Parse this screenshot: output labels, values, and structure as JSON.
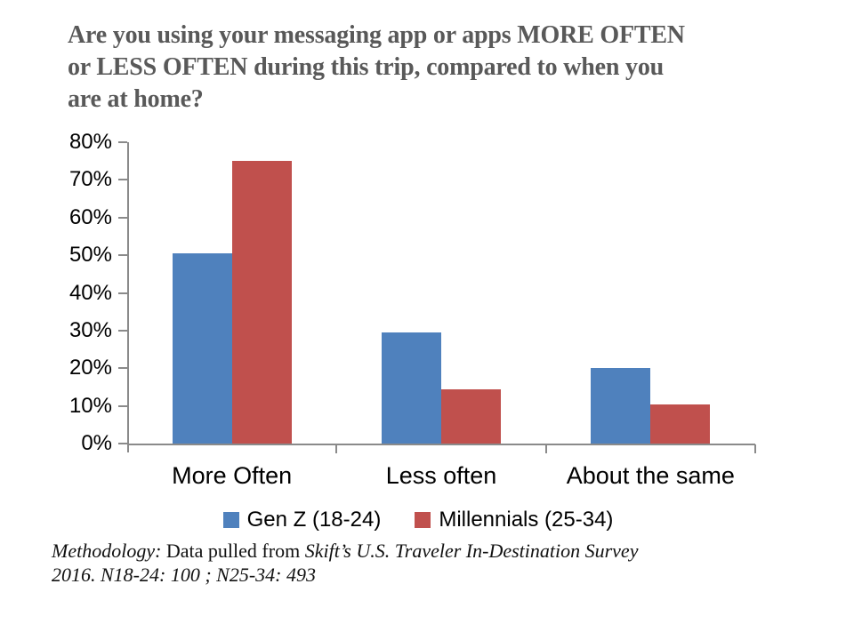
{
  "title": {
    "text": "Are you using your messaging app or apps MORE OFTEN or LESS OFTEN during this trip, compared to when you are at home?",
    "lines": [
      "Are you using your messaging app or apps MORE OFTEN",
      "or LESS OFTEN during this trip, compared to when you",
      "are at home?"
    ]
  },
  "chart_data": {
    "type": "bar",
    "categories": [
      "More Often",
      "Less often",
      "About the same"
    ],
    "series": [
      {
        "name": "Gen Z (18-24)",
        "color": "#4F81BD",
        "values": [
          50.5,
          29.5,
          20
        ]
      },
      {
        "name": "Millennials (25-34)",
        "color": "#C0504D",
        "values": [
          75,
          14.5,
          10.5
        ]
      }
    ],
    "ylim": [
      0,
      80
    ],
    "ytick_step": 10,
    "ytick_labels": [
      "0%",
      "10%",
      "20%",
      "30%",
      "40%",
      "50%",
      "60%",
      "70%",
      "80%"
    ],
    "xlabel": "",
    "ylabel": "",
    "grid": false,
    "legend_position": "bottom",
    "axis_color": "#8A8A8A",
    "label_color": "#000000"
  },
  "footnote": {
    "parts": [
      {
        "text": "Methodology: ",
        "style": "italic"
      },
      {
        "text": "Data pulled from ",
        "style": "regular"
      },
      {
        "text": "Skift’s U.S. Traveler In-Destination Survey 2016. N18-24: 100 ; N25-34: 493",
        "style": "italic"
      }
    ]
  }
}
